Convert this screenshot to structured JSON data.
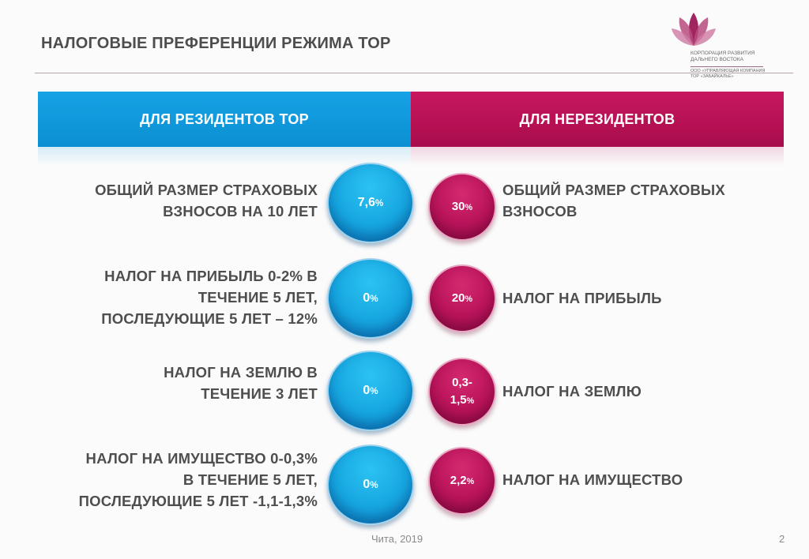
{
  "slide": {
    "title": "НАЛОГОВЫЕ ПРЕФЕРЕНЦИИ РЕЖИМА ТОР"
  },
  "logo": {
    "line1": "КОРПОРАЦИЯ РАЗВИТИЯ",
    "line2": "ДАЛЬНЕГО ВОСТОКА",
    "line3": "ООО «УПРАВЛЯЮЩАЯ КОМПАНИЯ",
    "line4": "ТОР «ЗАБАЙКАЛЬЕ»"
  },
  "columns": {
    "residents": {
      "label": "ДЛЯ РЕЗИДЕНТОВ ТОР",
      "color": "#0f98dc"
    },
    "nonresidents": {
      "label": "ДЛЯ НЕРЕЗИДЕНТОВ",
      "color": "#b81256"
    }
  },
  "rows": [
    {
      "left_lines": [
        "ОБЩИЙ РАЗМЕР СТРАХОВЫХ",
        "ВЗНОСОВ  НА 10 ЛЕТ"
      ],
      "resident_value": "7,6",
      "resident_unit": "%",
      "nonresident_value_lines": [
        "30"
      ],
      "nonresident_unit": "%",
      "right_lines": [
        "ОБЩИЙ РАЗМЕР СТРАХОВЫХ",
        "ВЗНОСОВ"
      ]
    },
    {
      "left_lines": [
        "НАЛОГ НА ПРИБЫЛЬ  0-2% В",
        "ТЕЧЕНИЕ 5 ЛЕТ,",
        "ПОСЛЕДУЮЩИЕ 5 ЛЕТ – 12%"
      ],
      "resident_value": "0",
      "resident_unit": "%",
      "nonresident_value_lines": [
        "20"
      ],
      "nonresident_unit": "%",
      "right_lines": [
        "НАЛОГ НА ПРИБЫЛЬ"
      ]
    },
    {
      "left_lines": [
        "НАЛОГ НА ЗЕМЛЮ  В",
        "ТЕЧЕНИЕ 3 ЛЕТ"
      ],
      "resident_value": "0",
      "resident_unit": "%",
      "nonresident_value_lines": [
        "0,3-",
        "1,5"
      ],
      "nonresident_unit": "%",
      "right_lines": [
        "НАЛОГ НА ЗЕМЛЮ"
      ]
    },
    {
      "left_lines": [
        "НАЛОГ НА ИМУЩЕСТВО  0-0,3%",
        "В ТЕЧЕНИЕ 5 ЛЕТ,",
        "ПОСЛЕДУЮЩИЕ 5 ЛЕТ -1,1-1,3%"
      ],
      "resident_value": "0",
      "resident_unit": "%",
      "nonresident_value_lines": [
        "2,2"
      ],
      "nonresident_unit": "%",
      "right_lines": [
        "НАЛОГ НА ИМУЩЕСТВО"
      ]
    }
  ],
  "footer": {
    "place": "Чита, 2019",
    "page": "2"
  }
}
